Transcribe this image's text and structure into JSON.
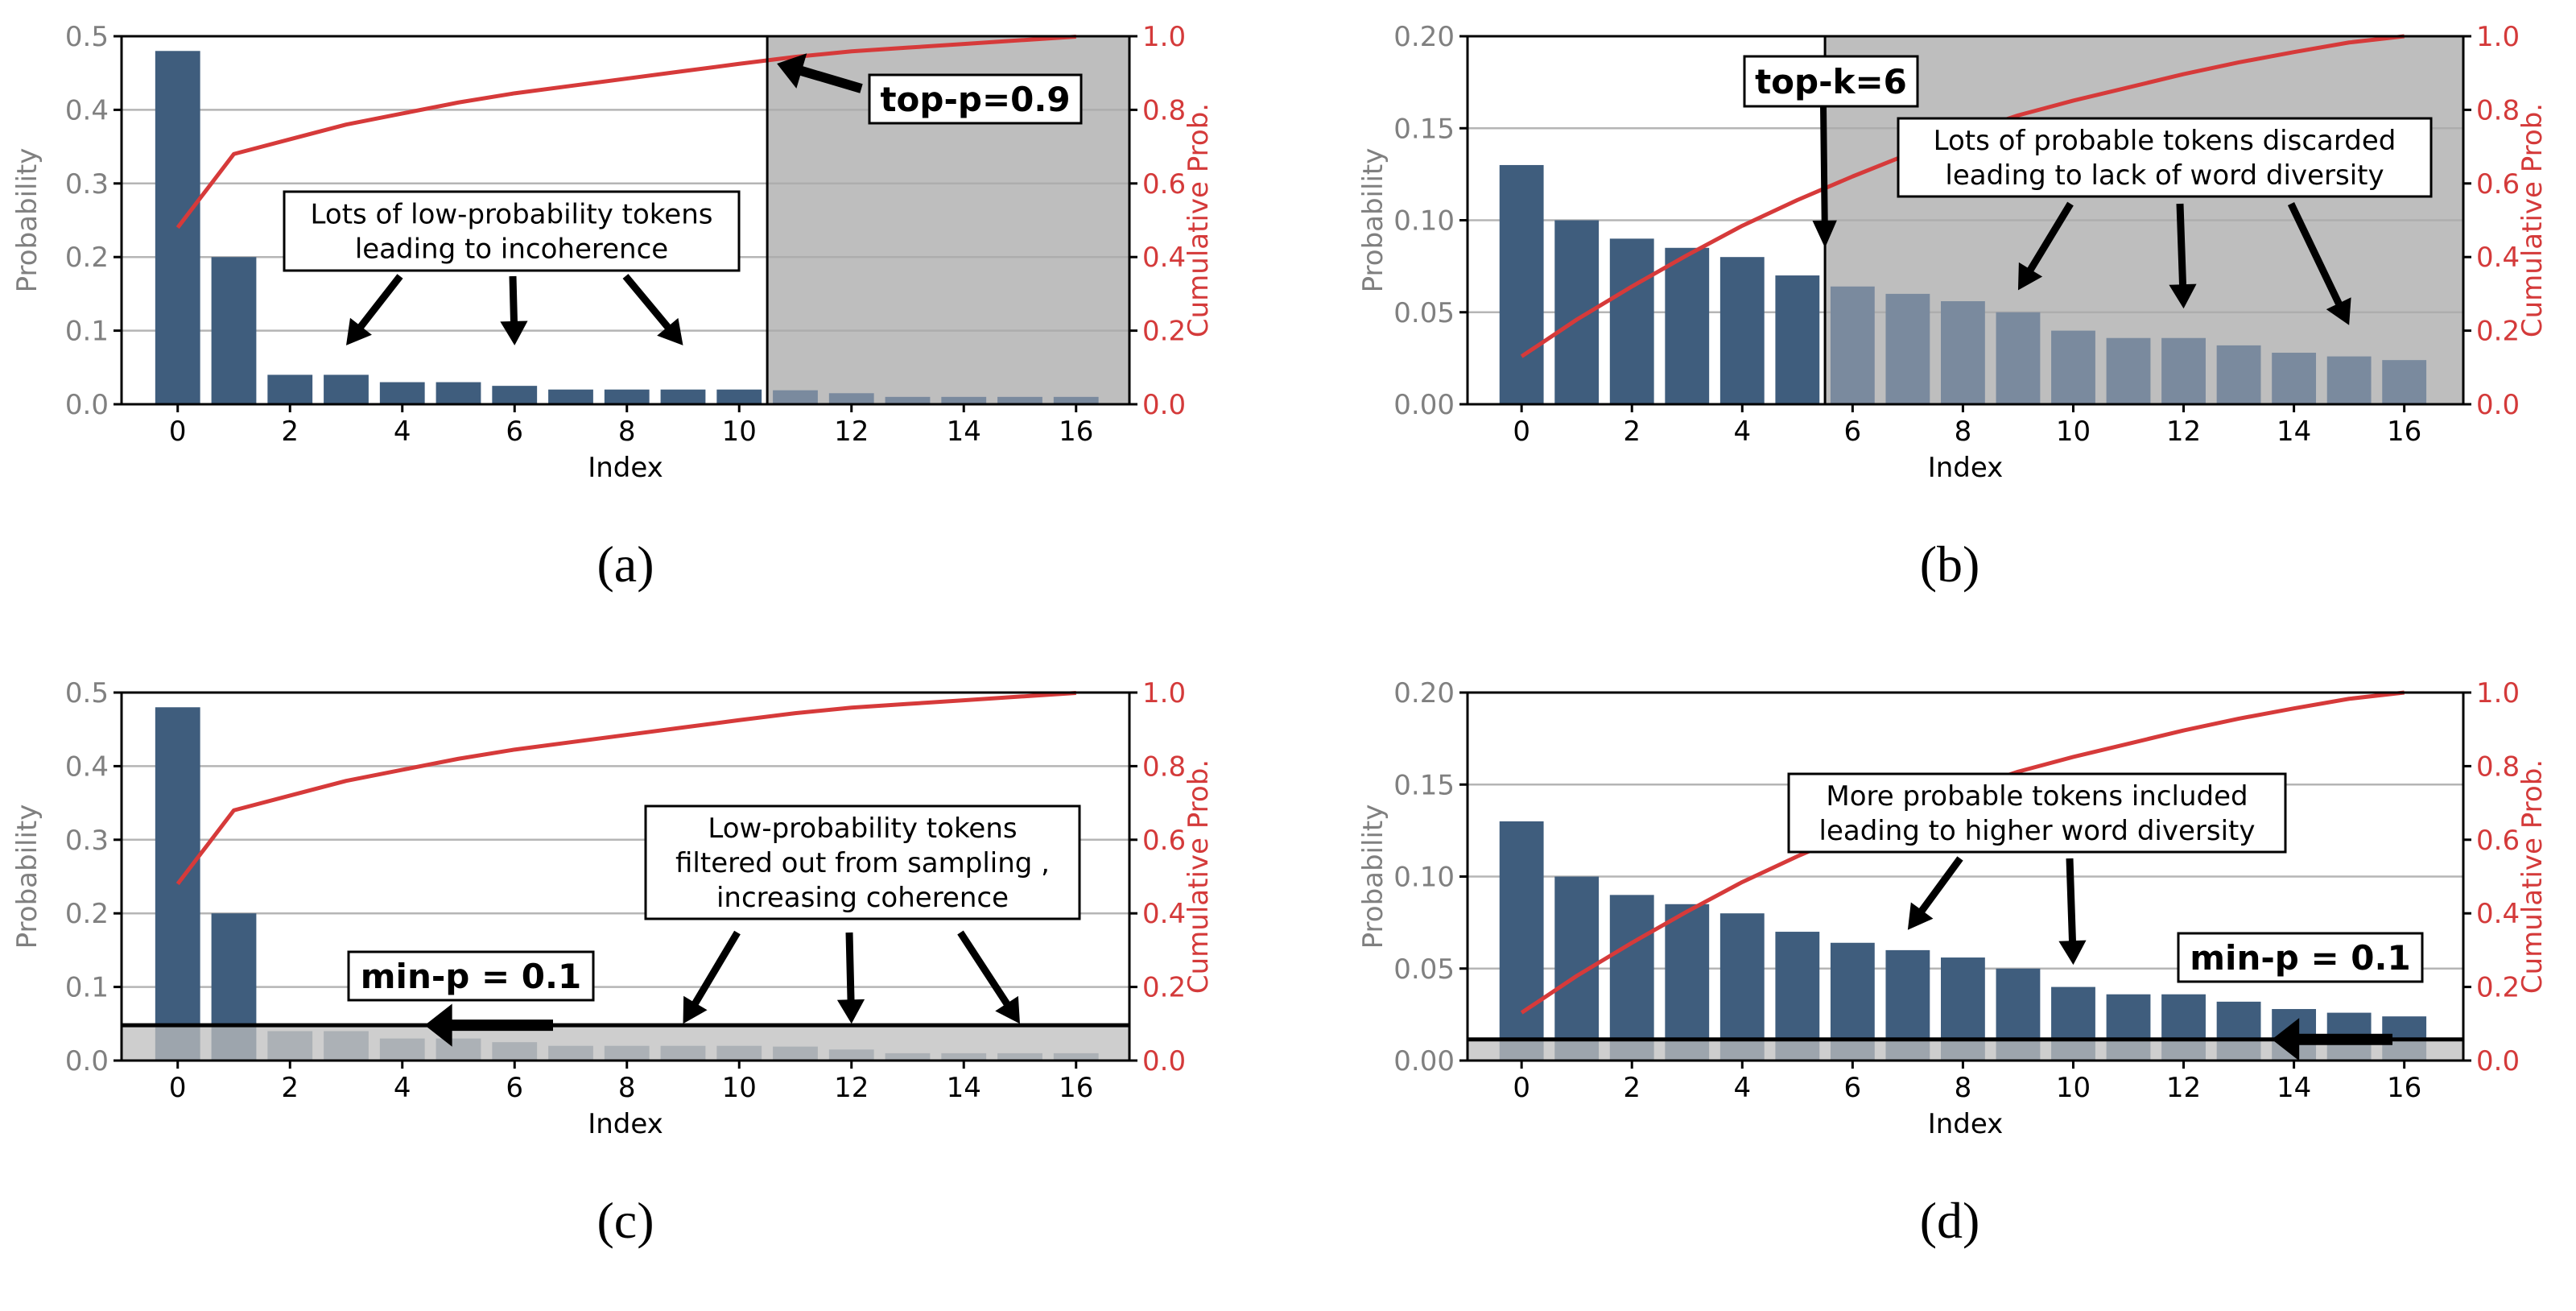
{
  "figure": {
    "colors": {
      "bar_kept": "#3f5d7d",
      "bar_filtered": "#7a8a9e",
      "bar_overlay": "#5c6a7c",
      "shade": "#bebebe",
      "cumulative_line": "#d63a3a",
      "left_axis_text": "#808080",
      "right_axis_text": "#d43a3a",
      "grid": "#b5b5b5"
    }
  },
  "chart_data": [
    {
      "id": "a",
      "type": "bar",
      "caption": "(a)",
      "title": "",
      "xlabel": "Index",
      "ylabel": "Probability",
      "ylabel_right": "Cumulative Prob.",
      "x": [
        0,
        1,
        2,
        3,
        4,
        5,
        6,
        7,
        8,
        9,
        10,
        11,
        12,
        13,
        14,
        15,
        16
      ],
      "values": [
        0.48,
        0.2,
        0.04,
        0.04,
        0.03,
        0.03,
        0.025,
        0.02,
        0.02,
        0.02,
        0.02,
        0.019,
        0.015,
        0.01,
        0.01,
        0.01,
        0.01
      ],
      "secondary_series": {
        "name": "Cumulative Prob.",
        "type": "line",
        "values": "cumulative sum of values"
      },
      "ylim": [
        0,
        0.5
      ],
      "ylim_right": [
        0,
        1.0
      ],
      "yticks": [
        "0.0",
        "0.1",
        "0.2",
        "0.3",
        "0.4",
        "0.5"
      ],
      "yticks_right": [
        "0.0",
        "0.2",
        "0.4",
        "0.6",
        "0.8",
        "1.0"
      ],
      "xticks": [
        "0",
        "2",
        "4",
        "6",
        "8",
        "10",
        "12",
        "14",
        "16"
      ],
      "grid": true,
      "method": "top-p",
      "cutoff_index": 10.5,
      "shaded_region": "x > 10.5 (filtered tokens)",
      "label_box": {
        "text": "top-p=0.9",
        "arrow_to": [
          10.5,
          0.93
        ]
      },
      "annotation": {
        "lines": [
          "Lots of low-probability tokens",
          "leading to incoherence"
        ],
        "arrow_targets": [
          [
            3,
            0.08
          ],
          [
            6,
            0.08
          ],
          [
            9,
            0.08
          ]
        ]
      }
    },
    {
      "id": "b",
      "type": "bar",
      "caption": "(b)",
      "title": "",
      "xlabel": "Index",
      "ylabel": "Probability",
      "ylabel_right": "Cumulative Prob.",
      "x": [
        0,
        1,
        2,
        3,
        4,
        5,
        6,
        7,
        8,
        9,
        10,
        11,
        12,
        13,
        14,
        15,
        16
      ],
      "values": [
        0.13,
        0.1,
        0.09,
        0.085,
        0.08,
        0.07,
        0.064,
        0.06,
        0.056,
        0.05,
        0.04,
        0.036,
        0.036,
        0.032,
        0.028,
        0.026,
        0.024
      ],
      "secondary_series": {
        "name": "Cumulative Prob.",
        "type": "line",
        "values": "cumulative sum of values"
      },
      "ylim": [
        0,
        0.2
      ],
      "ylim_right": [
        0,
        1.0
      ],
      "yticks": [
        "0.00",
        "0.05",
        "0.10",
        "0.15",
        "0.20"
      ],
      "yticks_right": [
        "0.0",
        "0.2",
        "0.4",
        "0.6",
        "0.8",
        "1.0"
      ],
      "xticks": [
        "0",
        "2",
        "4",
        "6",
        "8",
        "10",
        "12",
        "14",
        "16"
      ],
      "grid": true,
      "method": "top-k",
      "cutoff_index": 5.5,
      "shaded_region": "x > 5.5 (filtered tokens)",
      "label_box": {
        "text": "top-k=6",
        "arrow_to": [
          5.5,
          0.085
        ]
      },
      "annotation": {
        "lines": [
          "Lots of probable tokens discarded",
          "leading to lack of word diversity"
        ],
        "arrow_targets": [
          [
            9,
            0.062
          ],
          [
            12,
            0.052
          ],
          [
            15,
            0.043
          ]
        ]
      }
    },
    {
      "id": "c",
      "type": "bar",
      "caption": "(c)",
      "title": "",
      "xlabel": "Index",
      "ylabel": "Probability",
      "ylabel_right": "Cumulative Prob.",
      "x": [
        0,
        1,
        2,
        3,
        4,
        5,
        6,
        7,
        8,
        9,
        10,
        11,
        12,
        13,
        14,
        15,
        16
      ],
      "values": [
        0.48,
        0.2,
        0.04,
        0.04,
        0.03,
        0.03,
        0.025,
        0.02,
        0.02,
        0.02,
        0.02,
        0.019,
        0.015,
        0.01,
        0.01,
        0.01,
        0.01
      ],
      "secondary_series": {
        "name": "Cumulative Prob.",
        "type": "line",
        "values": "cumulative sum of values"
      },
      "ylim": [
        0,
        0.5
      ],
      "ylim_right": [
        0,
        1.0
      ],
      "yticks": [
        "0.0",
        "0.1",
        "0.2",
        "0.3",
        "0.4",
        "0.5"
      ],
      "yticks_right": [
        "0.0",
        "0.2",
        "0.4",
        "0.6",
        "0.8",
        "1.0"
      ],
      "xticks": [
        "0",
        "2",
        "4",
        "6",
        "8",
        "10",
        "12",
        "14",
        "16"
      ],
      "grid": true,
      "method": "min-p",
      "threshold": 0.048,
      "shaded_region": "y < 0.048 (filtered tokens)",
      "label_box": {
        "text": "min-p = 0.1",
        "arrow_to": [
          4.4,
          0.048
        ]
      },
      "annotation": {
        "lines": [
          "Low-probability tokens",
          "filtered out from sampling ,",
          "increasing coherence"
        ],
        "arrow_targets": [
          [
            9,
            0.05
          ],
          [
            12,
            0.05
          ],
          [
            15,
            0.05
          ]
        ]
      }
    },
    {
      "id": "d",
      "type": "bar",
      "caption": "(d)",
      "title": "",
      "xlabel": "Index",
      "ylabel": "Probability",
      "ylabel_right": "Cumulative Prob.",
      "x": [
        0,
        1,
        2,
        3,
        4,
        5,
        6,
        7,
        8,
        9,
        10,
        11,
        12,
        13,
        14,
        15,
        16
      ],
      "values": [
        0.13,
        0.1,
        0.09,
        0.085,
        0.08,
        0.07,
        0.064,
        0.06,
        0.056,
        0.05,
        0.04,
        0.036,
        0.036,
        0.032,
        0.028,
        0.026,
        0.024
      ],
      "secondary_series": {
        "name": "Cumulative Prob.",
        "type": "line",
        "values": "cumulative sum of values"
      },
      "ylim": [
        0,
        0.2
      ],
      "ylim_right": [
        0,
        1.0
      ],
      "yticks": [
        "0.00",
        "0.05",
        "0.10",
        "0.15",
        "0.20"
      ],
      "yticks_right": [
        "0.0",
        "0.2",
        "0.4",
        "0.6",
        "0.8",
        "1.0"
      ],
      "xticks": [
        "0",
        "2",
        "4",
        "6",
        "8",
        "10",
        "12",
        "14",
        "16"
      ],
      "grid": true,
      "method": "min-p",
      "threshold": 0.0115,
      "shaded_region": "y < 0.0115 (filtered tokens)",
      "label_box": {
        "text": "min-p = 0.1",
        "arrow_to": [
          13.6,
          0.0115
        ]
      },
      "annotation": {
        "lines": [
          "More probable tokens included",
          "leading to higher word diversity"
        ],
        "arrow_targets": [
          [
            7,
            0.071
          ],
          [
            10,
            0.052
          ]
        ]
      }
    }
  ]
}
